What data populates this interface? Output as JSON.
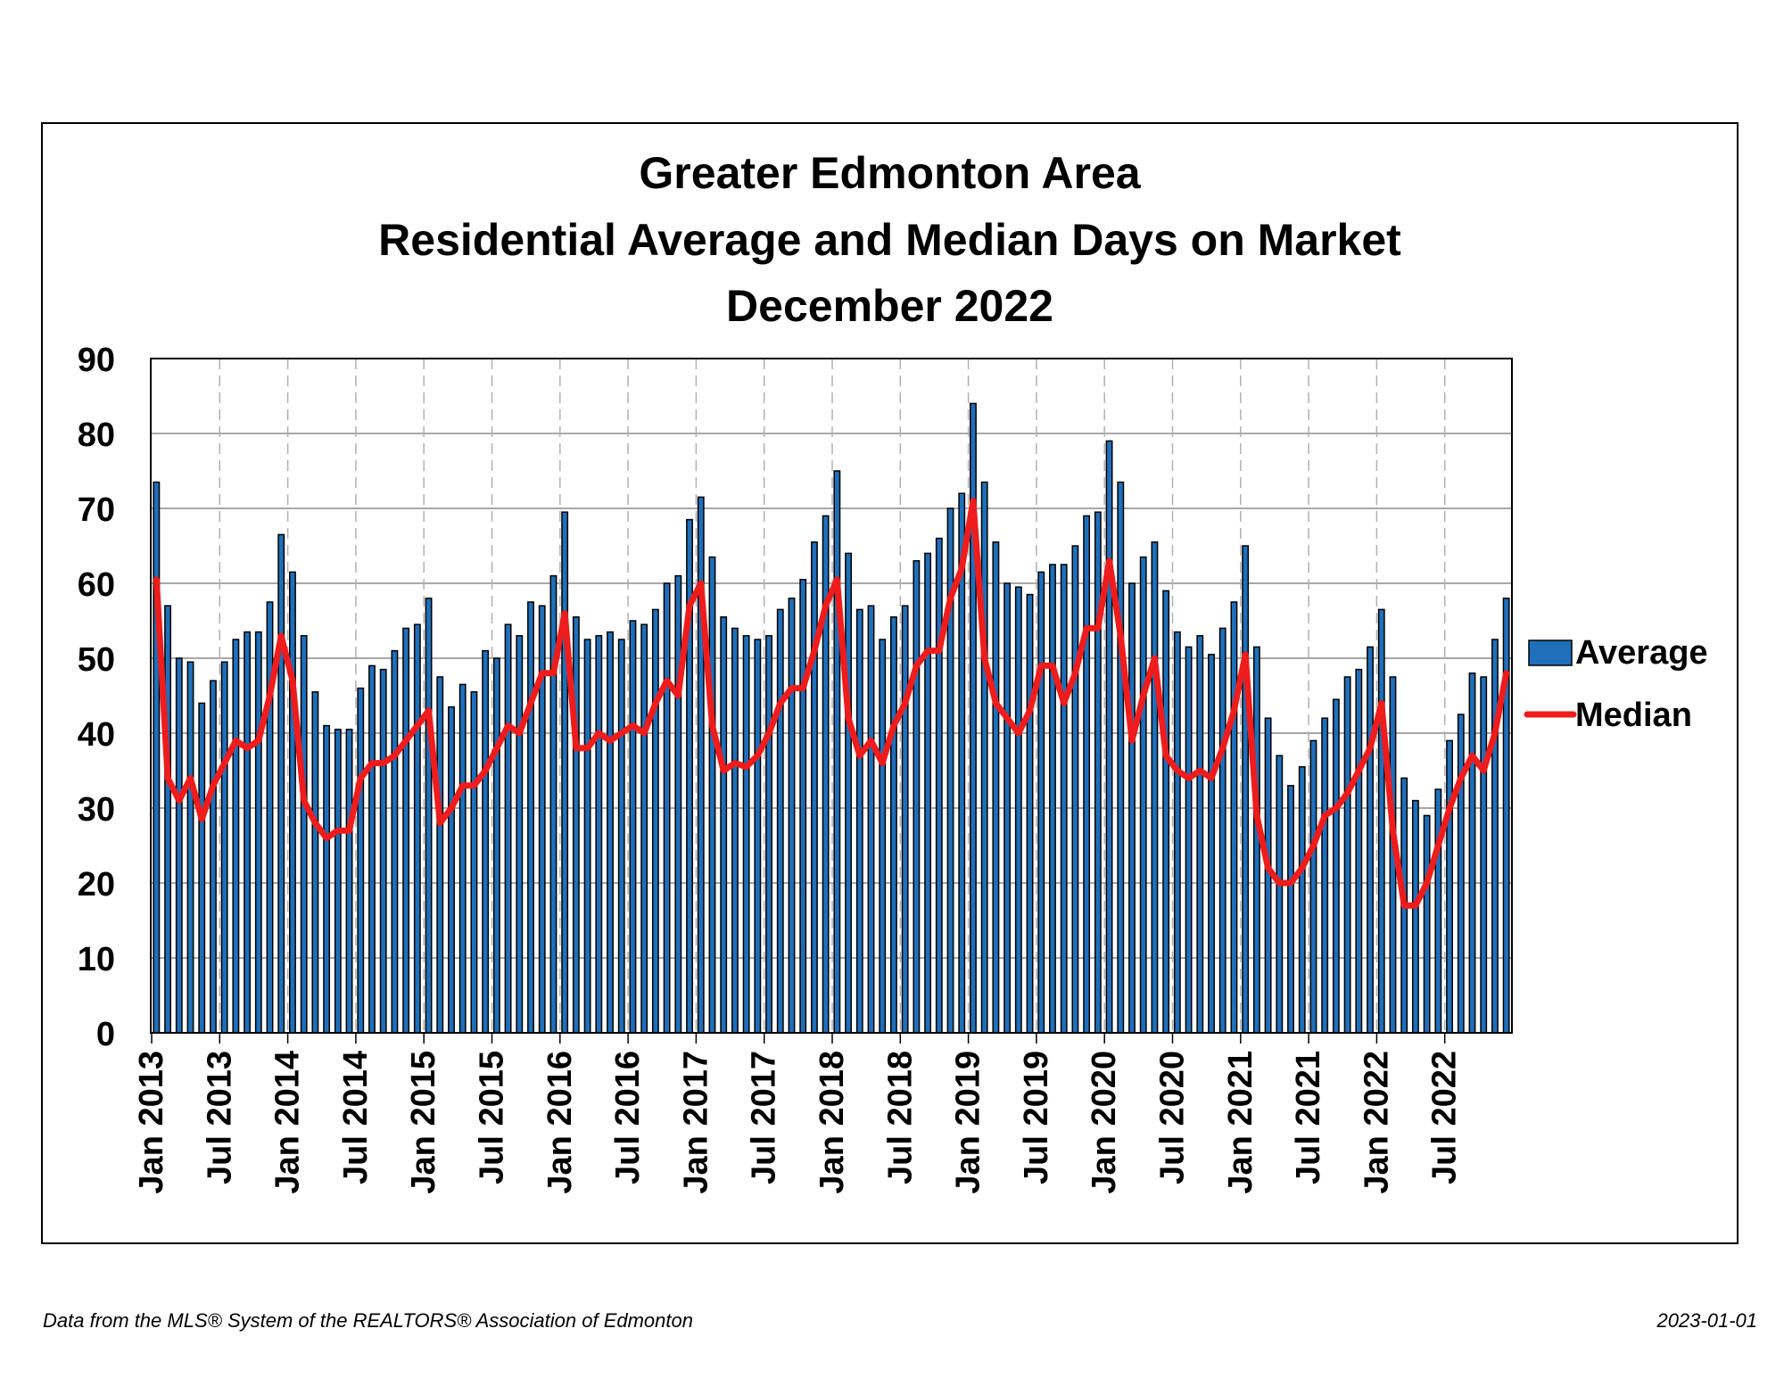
{
  "chart_data": {
    "type": "bar",
    "title": [
      "Greater Edmonton Area",
      "Residential Average and Median Days on Market",
      "December 2022"
    ],
    "ylim": [
      0,
      90
    ],
    "yticks": [
      0,
      10,
      20,
      30,
      40,
      50,
      60,
      70,
      80,
      90
    ],
    "xtick_labels": [
      "Jan 2013",
      "Jul 2013",
      "Jan 2014",
      "Jul 2014",
      "Jan 2015",
      "Jul 2015",
      "Jan 2016",
      "Jul 2016",
      "Jan 2017",
      "Jul 2017",
      "Jan 2018",
      "Jul 2018",
      "Jan 2019",
      "Jul 2019",
      "Jan 2020",
      "Jul 2020",
      "Jan 2021",
      "Jul 2021",
      "Jan 2022",
      "Jul 2022"
    ],
    "start_month": "2013-01",
    "grid": true,
    "legend_position": "right",
    "series": [
      {
        "name": "Average",
        "type": "bar",
        "color": "#1f6fba",
        "values": [
          73.5,
          57,
          50,
          49.5,
          44,
          47,
          49.5,
          52.5,
          53.5,
          53.5,
          57.5,
          66.5,
          61.5,
          53,
          45.5,
          41,
          40.5,
          40.5,
          46,
          49,
          48.5,
          51,
          54,
          54.5,
          58,
          47.5,
          43.5,
          46.5,
          45.5,
          51,
          50,
          54.5,
          53,
          57.5,
          57,
          61,
          69.5,
          55.5,
          52.5,
          53,
          53.5,
          52.5,
          55,
          54.5,
          56.5,
          60,
          61,
          68.5,
          71.5,
          63.5,
          55.5,
          54,
          53,
          52.5,
          53,
          56.5,
          58,
          60.5,
          65.5,
          69,
          75,
          64,
          56.5,
          57,
          52.5,
          55.5,
          57,
          63,
          64,
          66,
          70,
          72,
          84,
          73.5,
          65.5,
          60,
          59.5,
          58.5,
          61.5,
          62.5,
          62.5,
          65,
          69,
          69.5,
          79,
          73.5,
          60,
          63.5,
          65.5,
          59,
          53.5,
          51.5,
          53,
          50.5,
          54,
          57.5,
          65,
          51.5,
          42,
          37,
          33,
          35.5,
          39,
          42,
          44.5,
          47.5,
          48.5,
          51.5,
          56.5,
          47.5,
          34,
          31,
          29,
          32.5,
          39,
          42.5,
          48,
          47.5,
          52.5,
          58
        ]
      },
      {
        "name": "Median",
        "type": "line",
        "color": "#ee1c1c",
        "values": [
          60.5,
          34,
          31,
          34,
          28.5,
          33,
          36,
          39,
          38,
          39,
          45,
          53,
          47,
          31,
          28,
          26,
          27,
          27,
          34,
          36,
          36,
          37,
          39,
          41,
          43,
          28,
          30,
          33,
          33,
          35,
          38,
          41,
          40,
          44,
          48,
          48,
          56,
          38,
          38,
          40,
          39,
          40,
          41,
          40,
          44,
          47,
          45,
          57,
          60,
          41,
          35,
          36,
          35.5,
          37,
          40,
          44,
          46,
          46,
          51,
          57,
          60.5,
          42,
          37,
          39,
          36,
          41,
          44,
          49,
          51,
          51,
          58,
          62,
          71,
          50,
          44,
          42,
          40,
          43,
          49,
          49,
          44,
          48,
          54,
          54,
          63,
          53,
          39,
          45,
          50,
          37,
          35,
          34,
          35,
          34,
          38,
          43,
          50.5,
          29,
          22,
          20,
          20,
          22,
          25,
          29,
          30,
          32,
          35,
          38,
          44,
          27,
          17,
          17,
          20,
          25,
          30,
          34,
          37,
          35,
          40,
          48
        ]
      }
    ]
  },
  "footer": {
    "source": "Data from the MLS® System of the REALTORS® Association of Edmonton",
    "date": "2023-01-01"
  }
}
